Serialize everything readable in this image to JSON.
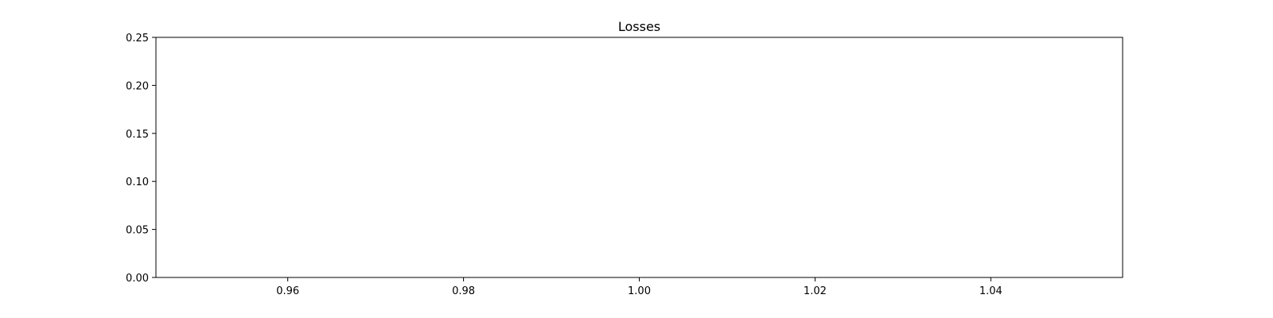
{
  "chart_data": {
    "type": "line",
    "title": "Losses",
    "xlabel": "",
    "ylabel": "",
    "xlim": [
      0.945,
      1.055
    ],
    "ylim": [
      0,
      0.25
    ],
    "xticks": [
      0.96,
      0.98,
      1.0,
      1.02,
      1.04
    ],
    "xtick_labels": [
      "0.96",
      "0.98",
      "1.00",
      "1.02",
      "1.04"
    ],
    "yticks": [
      0.0,
      0.05,
      0.1,
      0.15,
      0.2,
      0.25
    ],
    "ytick_labels": [
      "0.00",
      "0.05",
      "0.10",
      "0.15",
      "0.20",
      "0.25"
    ],
    "grid": false,
    "series": []
  }
}
